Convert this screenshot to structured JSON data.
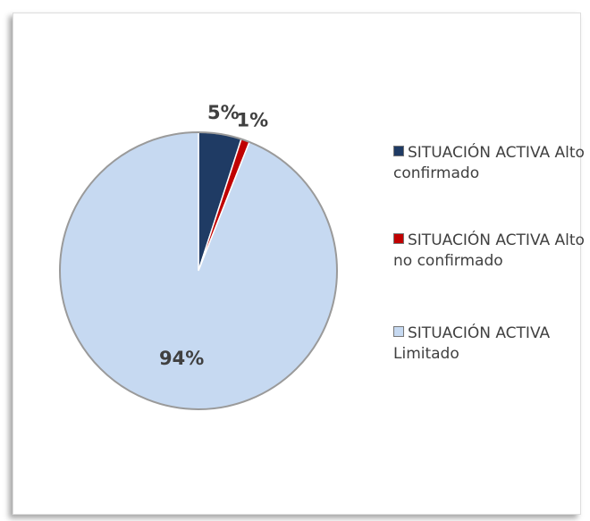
{
  "chart_data": {
    "type": "pie",
    "categories": [
      "SITUACIÓN ACTIVA Alto confirmado",
      "SITUACIÓN ACTIVA Alto no confirmado",
      "SITUACIÓN ACTIVA Limitado"
    ],
    "values": [
      5,
      1,
      94
    ],
    "value_labels": [
      "5%",
      "1%",
      "94%"
    ],
    "colors": [
      "#1f3b64",
      "#c00000",
      "#c6d9f1"
    ],
    "legend": "right"
  }
}
